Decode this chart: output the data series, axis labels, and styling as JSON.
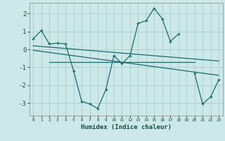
{
  "title": "",
  "xlabel": "Humidex (Indice chaleur)",
  "ylabel": "",
  "background_color": "#cce8e8",
  "grid_color": "#aacccc",
  "line_color": "#1a6b6b",
  "x_data": [
    0,
    1,
    2,
    3,
    4,
    5,
    6,
    7,
    8,
    9,
    10,
    11,
    12,
    13,
    14,
    15,
    16,
    17,
    18,
    19,
    20,
    21,
    22,
    23
  ],
  "y_main": [
    0.6,
    1.05,
    0.3,
    0.35,
    0.3,
    -1.2,
    -2.9,
    -3.05,
    -3.3,
    -2.25,
    -0.35,
    -0.8,
    -0.35,
    1.45,
    1.6,
    2.3,
    1.7,
    0.45,
    0.85,
    null,
    -1.35,
    -3.05,
    -2.65,
    -1.7
  ],
  "trend1_x": [
    2,
    20
  ],
  "trend1_y": [
    -0.7,
    -0.7
  ],
  "trend2_x": [
    0,
    23
  ],
  "trend2_y": [
    0.2,
    -0.65
  ],
  "trend3_x": [
    0,
    23
  ],
  "trend3_y": [
    -0.05,
    -1.45
  ],
  "ylim": [
    -3.7,
    2.6
  ],
  "xlim": [
    -0.5,
    23.5
  ],
  "yticks": [
    -3,
    -2,
    -1,
    0,
    1,
    2
  ],
  "xticks": [
    0,
    1,
    2,
    3,
    4,
    5,
    6,
    7,
    8,
    9,
    10,
    11,
    12,
    13,
    14,
    15,
    16,
    17,
    18,
    19,
    20,
    21,
    22,
    23
  ]
}
